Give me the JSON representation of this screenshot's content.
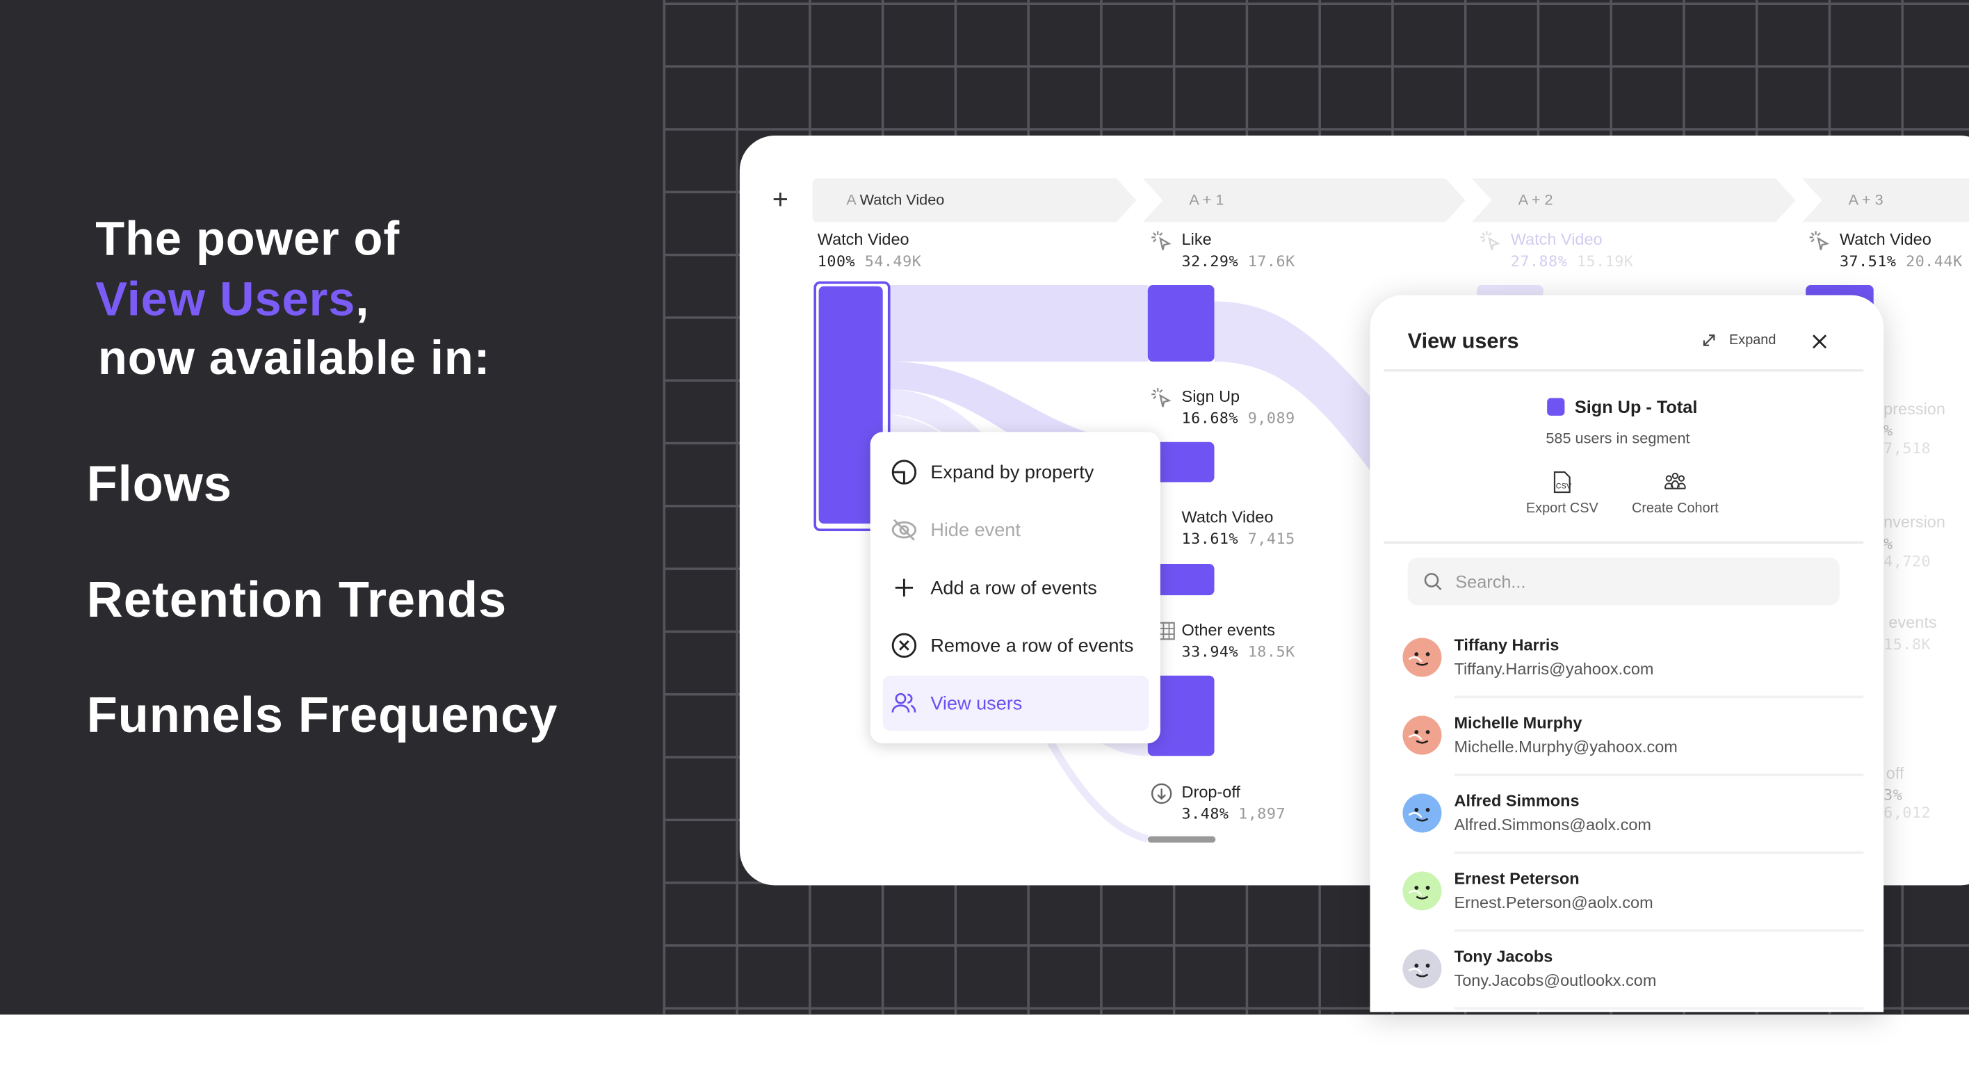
{
  "hero": {
    "line1": "The power of",
    "accent": "View Users",
    "comma": ",",
    "line3": "now available in:"
  },
  "features": [
    "Flows",
    "Retention Trends",
    "Funnels Frequency"
  ],
  "colors": {
    "accent": "#7b5cf6",
    "bar": "#7054f3",
    "band": "#e2ddfb",
    "background": "#2b2a2f"
  },
  "flow": {
    "add_icon": "plus-icon",
    "steps": [
      {
        "prefix": "A",
        "label": "Watch Video"
      },
      {
        "label": "A + 1"
      },
      {
        "label": "A + 2"
      },
      {
        "label": "A + 3"
      }
    ],
    "nodes": [
      {
        "label": "Watch Video",
        "pct": "100%",
        "count": "54.49K"
      },
      {
        "label": "Like",
        "pct": "32.29%",
        "count": "17.6K"
      },
      {
        "label": "Sign Up",
        "pct": "16.68%",
        "count": "9,089"
      },
      {
        "label": "Watch Video",
        "pct": "13.61%",
        "count": "7,415"
      },
      {
        "label": "Other events",
        "pct": "33.94%",
        "count": "18.5K"
      },
      {
        "label": "Drop-off",
        "pct": "3.48%",
        "count": "1,897"
      },
      {
        "label": "Watch Video",
        "pct": "27.88%",
        "count": "15.19K"
      },
      {
        "label": "Watch Video",
        "pct": "37.51%",
        "count": "20.44K"
      },
      {
        "label": "pression",
        "pct": "%",
        "count": "7,518"
      },
      {
        "label": "nversion",
        "pct": "%",
        "count": "4,720"
      },
      {
        "label": "events",
        "pct": "",
        "count": "15.8K"
      },
      {
        "label": "off",
        "pct": "3%",
        "count": "6,012"
      }
    ]
  },
  "context_menu": {
    "items": [
      {
        "label": "Expand by property",
        "icon": "expand-property-icon"
      },
      {
        "label": "Hide event",
        "icon": "eye-off-icon",
        "disabled": true
      },
      {
        "label": "Add a row of events",
        "icon": "plus-icon"
      },
      {
        "label": "Remove a row of events",
        "icon": "circle-x-icon"
      },
      {
        "label": "View users",
        "icon": "users-icon",
        "active": true
      }
    ]
  },
  "view_users": {
    "title": "View users",
    "expand_label": "Expand",
    "segment_name": "Sign Up - Total",
    "segment_count": "585 users in segment",
    "export_label": "Export CSV",
    "cohort_label": "Create Cohort",
    "search_placeholder": "Search...",
    "users": [
      {
        "name": "Tiffany Harris",
        "email": "Tiffany.Harris@yahoox.com",
        "color": "#f0a38e"
      },
      {
        "name": "Michelle Murphy",
        "email": "Michelle.Murphy@yahoox.com",
        "color": "#f0a38e"
      },
      {
        "name": "Alfred Simmons",
        "email": "Alfred.Simmons@aolx.com",
        "color": "#7fb5f7"
      },
      {
        "name": "Ernest Peterson",
        "email": "Ernest.Peterson@aolx.com",
        "color": "#c9f5b0"
      },
      {
        "name": "Tony Jacobs",
        "email": "Tony.Jacobs@outlookx.com",
        "color": "#d5d6e2"
      }
    ]
  }
}
